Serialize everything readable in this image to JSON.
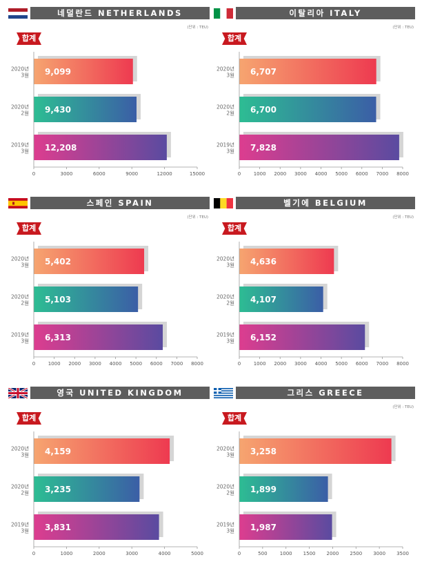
{
  "colors": {
    "header_bg": "#5d5d5d",
    "badge_bg": "#c8191f",
    "row1_from": "#f6a570",
    "row1_to": "#ee3a50",
    "row2_from": "#2dbd93",
    "row2_to": "#3b5ea6",
    "row3_from": "#dd3d8f",
    "row3_to": "#5a4ba0",
    "shadow": "#d5d5d5",
    "axis": "#9a9a9a"
  },
  "badge_label": "합계",
  "unit_label": "(단위 : TEU)",
  "panels": [
    {
      "id": "netherlands",
      "title": "네덜란드 NETHERLANDS",
      "flag": "netherlands-flag-icon",
      "chart_data": {
        "type": "bar",
        "orientation": "horizontal",
        "categories": [
          [
            "2020년",
            "3월"
          ],
          [
            "2020년",
            "2월"
          ],
          [
            "2019년",
            "3월"
          ]
        ],
        "values": [
          9099,
          9430,
          12208
        ],
        "labels": [
          "9,099",
          "9,430",
          "12,208"
        ],
        "xlim": [
          0,
          15000
        ],
        "ticks": [
          0,
          3000,
          6000,
          9000,
          12000,
          15000
        ],
        "tick_labels": [
          "0",
          "3000",
          "6000",
          "9000",
          "12000",
          "15000"
        ]
      }
    },
    {
      "id": "italy",
      "title": "이탈리아 ITALY",
      "flag": "italy-flag-icon",
      "chart_data": {
        "type": "bar",
        "orientation": "horizontal",
        "categories": [
          [
            "2020년",
            "3월"
          ],
          [
            "2020년",
            "2월"
          ],
          [
            "2019년",
            "3월"
          ]
        ],
        "values": [
          6707,
          6700,
          7828
        ],
        "labels": [
          "6,707",
          "6,700",
          "7,828"
        ],
        "xlim": [
          0,
          8000
        ],
        "ticks": [
          0,
          1000,
          2000,
          3000,
          4000,
          5000,
          6000,
          7000,
          8000
        ],
        "tick_labels": [
          "0",
          "1000",
          "2000",
          "3000",
          "4000",
          "5000",
          "6000",
          "7000",
          "8000"
        ]
      }
    },
    {
      "id": "spain",
      "title": "스페인 SPAIN",
      "flag": "spain-flag-icon",
      "chart_data": {
        "type": "bar",
        "orientation": "horizontal",
        "categories": [
          [
            "2020년",
            "3월"
          ],
          [
            "2020년",
            "2월"
          ],
          [
            "2019년",
            "3월"
          ]
        ],
        "values": [
          5402,
          5103,
          6313
        ],
        "labels": [
          "5,402",
          "5,103",
          "6,313"
        ],
        "xlim": [
          0,
          8000
        ],
        "ticks": [
          0,
          1000,
          2000,
          3000,
          4000,
          5000,
          6000,
          7000,
          8000
        ],
        "tick_labels": [
          "0",
          "1000",
          "2000",
          "3000",
          "4000",
          "5000",
          "6000",
          "7000",
          "8000"
        ]
      }
    },
    {
      "id": "belgium",
      "title": "벨기에 BELGIUM",
      "flag": "belgium-flag-icon",
      "chart_data": {
        "type": "bar",
        "orientation": "horizontal",
        "categories": [
          [
            "2020년",
            "3월"
          ],
          [
            "2020년",
            "2월"
          ],
          [
            "2019년",
            "3월"
          ]
        ],
        "values": [
          4636,
          4107,
          6152
        ],
        "labels": [
          "4,636",
          "4,107",
          "6,152"
        ],
        "xlim": [
          0,
          8000
        ],
        "ticks": [
          0,
          1000,
          2000,
          3000,
          4000,
          5000,
          6000,
          7000,
          8000
        ],
        "tick_labels": [
          "0",
          "1000",
          "2000",
          "3000",
          "4000",
          "5000",
          "6000",
          "7000",
          "8000"
        ]
      }
    },
    {
      "id": "uk",
      "title": "영국 UNITED KINGDOM",
      "flag": "uk-flag-icon",
      "chart_data": {
        "type": "bar",
        "orientation": "horizontal",
        "categories": [
          [
            "2020년",
            "3월"
          ],
          [
            "2020년",
            "2월"
          ],
          [
            "2019년",
            "3월"
          ]
        ],
        "values": [
          4159,
          3235,
          3831
        ],
        "labels": [
          "4,159",
          "3,235",
          "3,831"
        ],
        "xlim": [
          0,
          5000
        ],
        "ticks": [
          0,
          1000,
          2000,
          3000,
          4000,
          5000
        ],
        "tick_labels": [
          "0",
          "1000",
          "2000",
          "3000",
          "4000",
          "5000"
        ]
      }
    },
    {
      "id": "greece",
      "title": "그리스 GREECE",
      "flag": "greece-flag-icon",
      "chart_data": {
        "type": "bar",
        "orientation": "horizontal",
        "categories": [
          [
            "2020년",
            "3월"
          ],
          [
            "2020년",
            "2월"
          ],
          [
            "2019년",
            "3월"
          ]
        ],
        "values": [
          3258,
          1899,
          1987
        ],
        "labels": [
          "3,258",
          "1,899",
          "1,987"
        ],
        "xlim": [
          0,
          3500
        ],
        "ticks": [
          0,
          500,
          1000,
          1500,
          2000,
          2500,
          3000,
          3500
        ],
        "tick_labels": [
          "0",
          "500",
          "1000",
          "1500",
          "2000",
          "2500",
          "3000",
          "3500"
        ]
      }
    }
  ]
}
